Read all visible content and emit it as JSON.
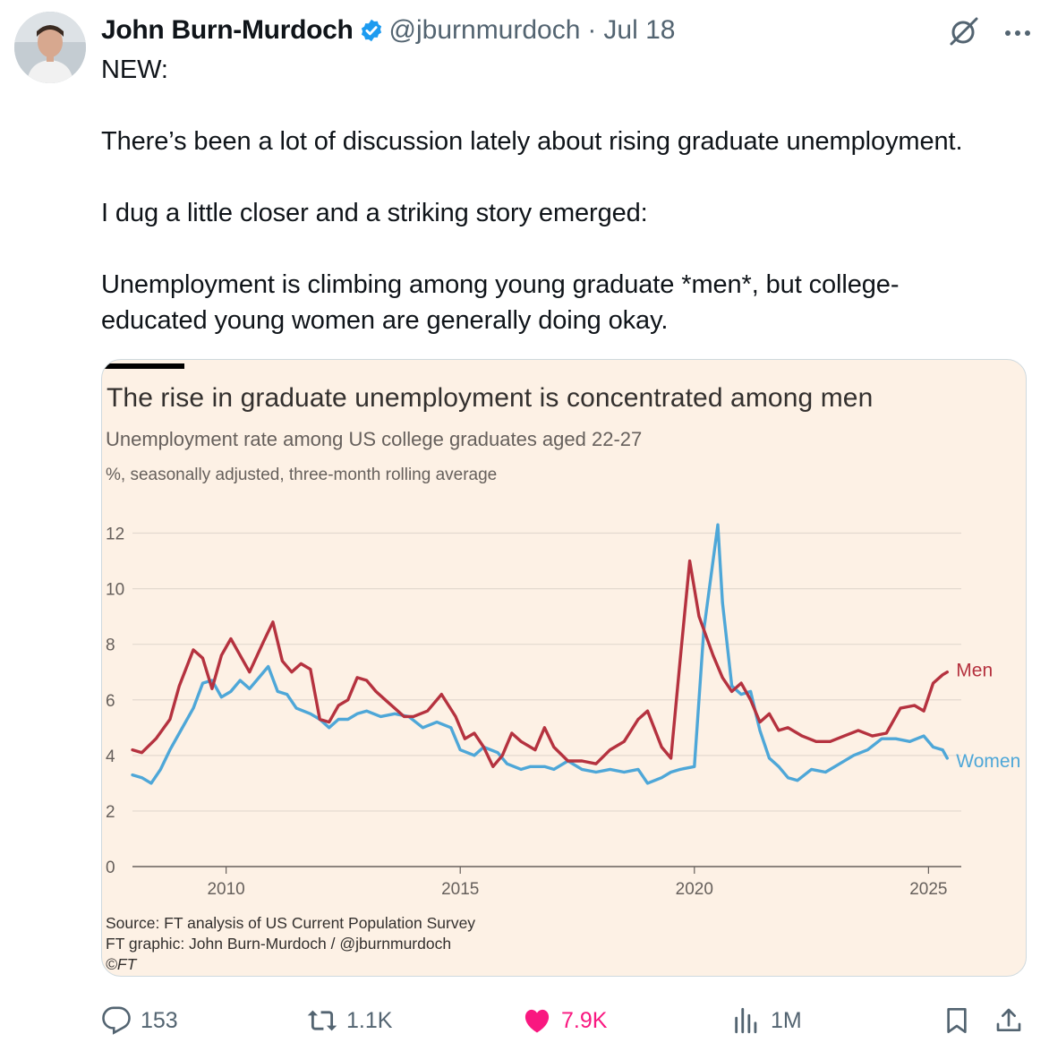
{
  "tweet": {
    "author_name": "John Burn-Murdoch",
    "handle": "@jburnmurdoch",
    "separator": "·",
    "date": "Jul 18",
    "text": "NEW:\n\nThere’s been a lot of discussion lately about rising graduate unemployment.\n\nI dug a little closer and a striking story emerged:\n\nUnemployment is climbing among young graduate *men*, but college-\neducated young women are generally doing okay."
  },
  "card": {
    "footnote_source": "Source: FT analysis of US Current Population Survey",
    "footnote_graphic": "FT graphic: John Burn-Murdoch / @jburnmurdoch",
    "footnote_copyright": "©FT"
  },
  "actions": {
    "replies": "153",
    "reposts": "1.1K",
    "likes": "7.9K",
    "views": "1M"
  },
  "colors": {
    "men": "#b5323f",
    "women": "#4ea7d8",
    "background": "#fdf1e5",
    "like": "#f91880",
    "verified": "#1d9bf0"
  },
  "chart_data": {
    "type": "line",
    "title": "The rise in graduate unemployment is concentrated among men",
    "subtitle": "Unemployment rate among US college graduates aged 22-27",
    "unit_note": "%, seasonally adjusted, three-month rolling average",
    "ylim": [
      0,
      12.5
    ],
    "yticks": [
      "0",
      "2",
      "4",
      "6",
      "8",
      "10",
      "12"
    ],
    "xlim": [
      2008.0,
      2025.7
    ],
    "xticks": [
      "2010",
      "2015",
      "2020",
      "2025"
    ],
    "grid": true,
    "legend": "direct labels at line ends",
    "series": [
      {
        "name": "Men",
        "x": [
          2008.0,
          2008.2,
          2008.5,
          2008.8,
          2009.0,
          2009.3,
          2009.5,
          2009.7,
          2009.9,
          2010.1,
          2010.3,
          2010.5,
          2010.8,
          2011.0,
          2011.2,
          2011.4,
          2011.6,
          2011.8,
          2012.0,
          2012.2,
          2012.4,
          2012.6,
          2012.8,
          2013.0,
          2013.2,
          2013.4,
          2013.6,
          2013.8,
          2014.0,
          2014.3,
          2014.6,
          2014.9,
          2015.1,
          2015.3,
          2015.5,
          2015.7,
          2015.9,
          2016.1,
          2016.3,
          2016.6,
          2016.8,
          2017.0,
          2017.3,
          2017.6,
          2017.9,
          2018.2,
          2018.5,
          2018.8,
          2019.0,
          2019.3,
          2019.5,
          2019.7,
          2019.9,
          2020.1,
          2020.4,
          2020.6,
          2020.8,
          2021.0,
          2021.2,
          2021.4,
          2021.6,
          2021.8,
          2022.0,
          2022.3,
          2022.6,
          2022.9,
          2023.2,
          2023.5,
          2023.8,
          2024.1,
          2024.4,
          2024.7,
          2024.9,
          2025.1,
          2025.3,
          2025.4
        ],
        "values": [
          4.2,
          4.1,
          4.6,
          5.3,
          6.5,
          7.8,
          7.5,
          6.4,
          7.6,
          8.2,
          7.6,
          7.0,
          8.1,
          8.8,
          7.4,
          7.0,
          7.3,
          7.1,
          5.3,
          5.2,
          5.8,
          6.0,
          6.8,
          6.7,
          6.3,
          6.0,
          5.7,
          5.4,
          5.4,
          5.6,
          6.2,
          5.4,
          4.6,
          4.8,
          4.3,
          3.6,
          4.0,
          4.8,
          4.5,
          4.2,
          5.0,
          4.3,
          3.8,
          3.8,
          3.7,
          4.2,
          4.5,
          5.3,
          5.6,
          4.3,
          3.9,
          7.5,
          11.0,
          9.0,
          7.6,
          6.8,
          6.3,
          6.6,
          6.0,
          5.2,
          5.5,
          4.9,
          5.0,
          4.7,
          4.5,
          4.5,
          4.7,
          4.9,
          4.7,
          4.8,
          5.7,
          5.8,
          5.6,
          6.6,
          6.9,
          7.0
        ]
      },
      {
        "name": "Women",
        "x": [
          2008.0,
          2008.2,
          2008.4,
          2008.6,
          2008.8,
          2009.0,
          2009.3,
          2009.5,
          2009.7,
          2009.9,
          2010.1,
          2010.3,
          2010.5,
          2010.7,
          2010.9,
          2011.1,
          2011.3,
          2011.5,
          2011.8,
          2012.0,
          2012.2,
          2012.4,
          2012.6,
          2012.8,
          2013.0,
          2013.3,
          2013.6,
          2013.9,
          2014.2,
          2014.5,
          2014.8,
          2015.0,
          2015.3,
          2015.5,
          2015.8,
          2016.0,
          2016.3,
          2016.5,
          2016.8,
          2017.0,
          2017.3,
          2017.6,
          2017.9,
          2018.2,
          2018.5,
          2018.8,
          2019.0,
          2019.3,
          2019.5,
          2019.7,
          2020.0,
          2020.2,
          2020.5,
          2020.6,
          2020.8,
          2021.0,
          2021.2,
          2021.4,
          2021.6,
          2021.8,
          2022.0,
          2022.2,
          2022.5,
          2022.8,
          2023.1,
          2023.4,
          2023.7,
          2024.0,
          2024.3,
          2024.6,
          2024.9,
          2025.1,
          2025.3,
          2025.4
        ],
        "values": [
          3.3,
          3.2,
          3.0,
          3.5,
          4.2,
          4.8,
          5.7,
          6.6,
          6.7,
          6.1,
          6.3,
          6.7,
          6.4,
          6.8,
          7.2,
          6.3,
          6.2,
          5.7,
          5.5,
          5.3,
          5.0,
          5.3,
          5.3,
          5.5,
          5.6,
          5.4,
          5.5,
          5.4,
          5.0,
          5.2,
          5.0,
          4.2,
          4.0,
          4.3,
          4.1,
          3.7,
          3.5,
          3.6,
          3.6,
          3.5,
          3.8,
          3.5,
          3.4,
          3.5,
          3.4,
          3.5,
          3.0,
          3.2,
          3.4,
          3.5,
          3.6,
          8.5,
          12.3,
          9.5,
          6.5,
          6.2,
          6.3,
          4.9,
          3.9,
          3.6,
          3.2,
          3.1,
          3.5,
          3.4,
          3.7,
          4.0,
          4.2,
          4.6,
          4.6,
          4.5,
          4.7,
          4.3,
          4.2,
          3.9
        ]
      }
    ],
    "source": "Source: FT analysis of US Current Population Survey"
  }
}
